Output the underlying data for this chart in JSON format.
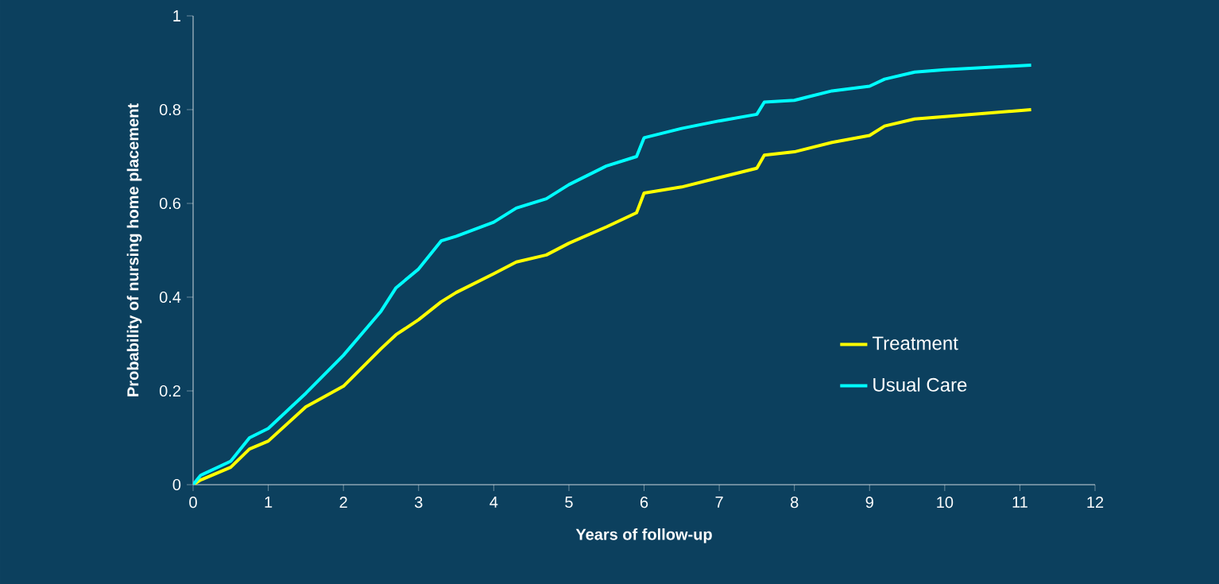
{
  "chart_data": {
    "type": "line",
    "xlabel": "Years of follow-up",
    "ylabel": "Probability of nursing home placement",
    "xlim": [
      0,
      12
    ],
    "xticks": [
      0,
      1,
      2,
      3,
      4,
      5,
      6,
      7,
      8,
      9,
      10,
      11,
      12
    ],
    "ylim": [
      0,
      1
    ],
    "yticks": [
      0,
      0.2,
      0.4,
      0.6,
      0.8,
      1
    ],
    "x": [
      0,
      0.1,
      0.5,
      0.75,
      1.0,
      1.5,
      2.0,
      2.5,
      2.7,
      3.0,
      3.3,
      3.5,
      4.0,
      4.3,
      4.7,
      5.0,
      5.5,
      5.9,
      6.0,
      6.5,
      7.0,
      7.5,
      7.6,
      8.0,
      8.5,
      9.0,
      9.2,
      9.6,
      10.0,
      11.15
    ],
    "series": [
      {
        "name": "Treatment",
        "color": "#ffff00",
        "values": [
          0,
          0.01,
          0.037,
          0.076,
          0.093,
          0.166,
          0.21,
          0.29,
          0.32,
          0.352,
          0.39,
          0.41,
          0.45,
          0.475,
          0.49,
          0.515,
          0.55,
          0.58,
          0.622,
          0.635,
          0.655,
          0.675,
          0.703,
          0.71,
          0.73,
          0.745,
          0.765,
          0.78,
          0.785,
          0.8
        ]
      },
      {
        "name": "Usual Care",
        "color": "#00ffff",
        "values": [
          0,
          0.02,
          0.05,
          0.1,
          0.12,
          0.195,
          0.276,
          0.37,
          0.42,
          0.46,
          0.52,
          0.53,
          0.56,
          0.59,
          0.61,
          0.64,
          0.68,
          0.7,
          0.74,
          0.76,
          0.776,
          0.79,
          0.816,
          0.82,
          0.84,
          0.85,
          0.865,
          0.88,
          0.885,
          0.895
        ]
      }
    ],
    "legend": "right",
    "marker": "none",
    "line_style": "solid",
    "grid": false
  }
}
